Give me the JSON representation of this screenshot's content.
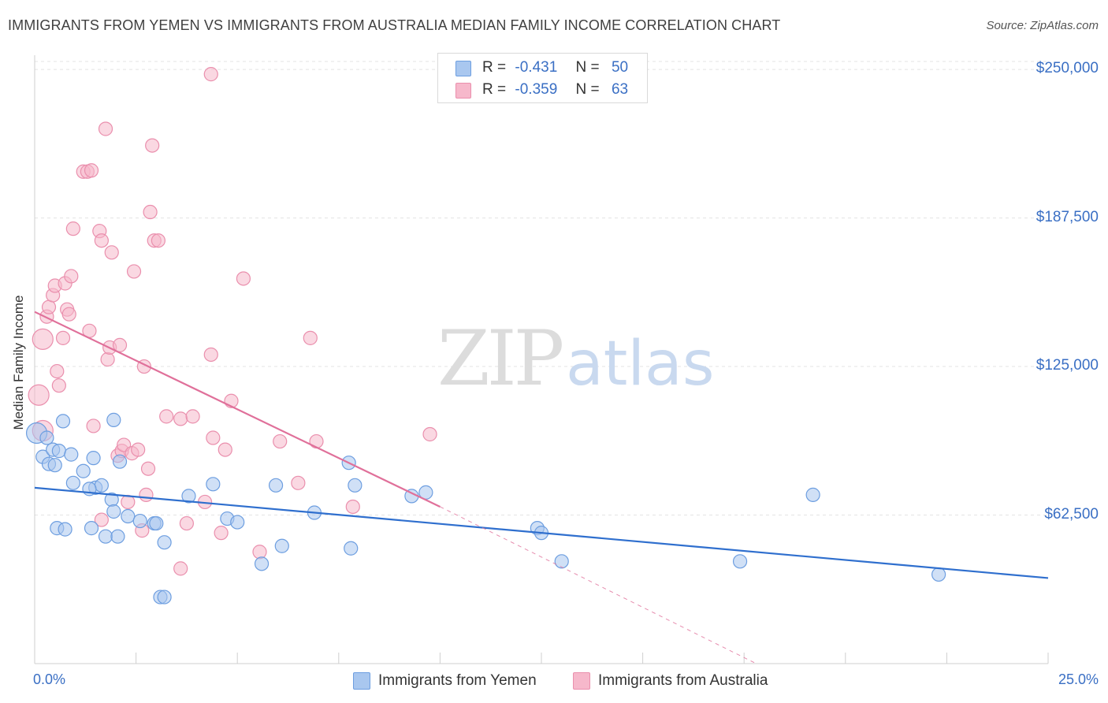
{
  "title": "IMMIGRANTS FROM YEMEN VS IMMIGRANTS FROM AUSTRALIA MEDIAN FAMILY INCOME CORRELATION CHART",
  "source": "Source: ZipAtlas.com",
  "watermark": {
    "zip": "ZIP",
    "atlas": "atlas"
  },
  "legend": {
    "yemen": {
      "r_label": "R =",
      "r_value": "-0.431",
      "n_label": "N =",
      "n_value": "50"
    },
    "australia": {
      "r_label": "R =",
      "r_value": "-0.359",
      "n_label": "N =",
      "n_value": "63"
    }
  },
  "bottom_legend": {
    "yemen": "Immigrants from Yemen",
    "australia": "Immigrants from Australia"
  },
  "colors": {
    "yemen_fill": "#a9c7ef",
    "yemen_stroke": "#6d9ee0",
    "yemen_line": "#2f6fce",
    "australia_fill": "#f6b8cb",
    "australia_stroke": "#ea8fad",
    "australia_line": "#e0709a",
    "tick_label": "#3a6fc4",
    "grid": "#e3e3e3"
  },
  "chart_data": {
    "type": "scatter",
    "title": "IMMIGRANTS FROM YEMEN VS IMMIGRANTS FROM AUSTRALIA MEDIAN FAMILY INCOME CORRELATION CHART",
    "xlabel": "",
    "ylabel": "Median Family Income",
    "xlim": [
      0,
      25
    ],
    "ylim": [
      0,
      256000
    ],
    "x_tick_labels": [
      "0.0%",
      "25.0%"
    ],
    "y_ticks": [
      62500,
      125000,
      187500,
      250000
    ],
    "y_tick_labels": [
      "$62,500",
      "$125,000",
      "$187,500",
      "$250,000"
    ],
    "grid": true,
    "series": [
      {
        "name": "Immigrants from Yemen",
        "trend": {
          "x": [
            0,
            25
          ],
          "y": [
            74000,
            36000
          ]
        },
        "points": [
          [
            0.05,
            97000
          ],
          [
            0.2,
            87000
          ],
          [
            0.35,
            84000
          ],
          [
            0.45,
            90000
          ],
          [
            0.6,
            89500
          ],
          [
            0.9,
            88000
          ],
          [
            0.7,
            102000
          ],
          [
            0.55,
            57000
          ],
          [
            0.75,
            56500
          ],
          [
            0.95,
            76000
          ],
          [
            1.2,
            81000
          ],
          [
            1.45,
            86500
          ],
          [
            1.5,
            74000
          ],
          [
            1.65,
            75000
          ],
          [
            1.4,
            57000
          ],
          [
            1.75,
            53500
          ],
          [
            1.9,
            69000
          ],
          [
            1.95,
            64000
          ],
          [
            2.05,
            53500
          ],
          [
            2.1,
            85000
          ],
          [
            2.3,
            62000
          ],
          [
            2.6,
            60000
          ],
          [
            2.95,
            59000
          ],
          [
            3.0,
            59000
          ],
          [
            3.2,
            51000
          ],
          [
            3.1,
            28000
          ],
          [
            3.2,
            28000
          ],
          [
            3.8,
            70500
          ],
          [
            4.4,
            75500
          ],
          [
            4.75,
            61000
          ],
          [
            5.0,
            59500
          ],
          [
            5.6,
            42000
          ],
          [
            5.95,
            75000
          ],
          [
            6.1,
            49500
          ],
          [
            6.9,
            63500
          ],
          [
            7.75,
            84500
          ],
          [
            7.8,
            48500
          ],
          [
            7.9,
            75000
          ],
          [
            9.3,
            70500
          ],
          [
            9.65,
            72000
          ],
          [
            12.4,
            57000
          ],
          [
            12.5,
            55000
          ],
          [
            13.0,
            43000
          ],
          [
            17.4,
            43000
          ],
          [
            19.2,
            71000
          ],
          [
            22.3,
            37500
          ],
          [
            1.95,
            102500
          ],
          [
            0.5,
            83500
          ],
          [
            1.35,
            73500
          ],
          [
            0.3,
            95000
          ]
        ]
      },
      {
        "name": "Immigrants from Australia",
        "trend": {
          "x": [
            0,
            10
          ],
          "y": [
            148000,
            66000
          ]
        },
        "trend_dashed": {
          "x": [
            10,
            17.8
          ],
          "y": [
            66000,
            0
          ]
        },
        "points": [
          [
            0.1,
            113000
          ],
          [
            0.2,
            136500
          ],
          [
            0.3,
            146000
          ],
          [
            0.35,
            150000
          ],
          [
            0.45,
            155000
          ],
          [
            0.5,
            159000
          ],
          [
            0.55,
            123000
          ],
          [
            0.6,
            117000
          ],
          [
            0.7,
            137000
          ],
          [
            0.75,
            160000
          ],
          [
            0.8,
            149000
          ],
          [
            0.85,
            147000
          ],
          [
            0.9,
            163000
          ],
          [
            0.95,
            183000
          ],
          [
            1.2,
            207000
          ],
          [
            1.3,
            207000
          ],
          [
            1.35,
            140000
          ],
          [
            1.45,
            100000
          ],
          [
            1.6,
            182000
          ],
          [
            1.65,
            60500
          ],
          [
            1.65,
            178000
          ],
          [
            1.75,
            225000
          ],
          [
            1.8,
            128000
          ],
          [
            1.85,
            133000
          ],
          [
            1.9,
            173000
          ],
          [
            2.05,
            87500
          ],
          [
            2.1,
            134000
          ],
          [
            2.15,
            89500
          ],
          [
            2.2,
            92000
          ],
          [
            2.3,
            68000
          ],
          [
            2.4,
            88500
          ],
          [
            2.45,
            165000
          ],
          [
            2.55,
            90000
          ],
          [
            2.65,
            56000
          ],
          [
            2.7,
            125000
          ],
          [
            2.75,
            71000
          ],
          [
            2.8,
            82000
          ],
          [
            2.85,
            190000
          ],
          [
            2.9,
            218000
          ],
          [
            2.95,
            178000
          ],
          [
            3.05,
            178000
          ],
          [
            3.25,
            104000
          ],
          [
            3.6,
            103000
          ],
          [
            3.6,
            40000
          ],
          [
            3.75,
            59000
          ],
          [
            3.9,
            104000
          ],
          [
            4.2,
            68000
          ],
          [
            4.35,
            130000
          ],
          [
            4.4,
            95000
          ],
          [
            4.6,
            55000
          ],
          [
            4.7,
            90000
          ],
          [
            4.85,
            110500
          ],
          [
            5.15,
            162000
          ],
          [
            5.55,
            47000
          ],
          [
            6.05,
            93500
          ],
          [
            6.5,
            76000
          ],
          [
            6.8,
            137000
          ],
          [
            6.95,
            93500
          ],
          [
            7.85,
            66000
          ],
          [
            9.75,
            96500
          ],
          [
            4.35,
            248000
          ],
          [
            0.2,
            98000
          ],
          [
            1.4,
            207500
          ]
        ]
      }
    ]
  }
}
